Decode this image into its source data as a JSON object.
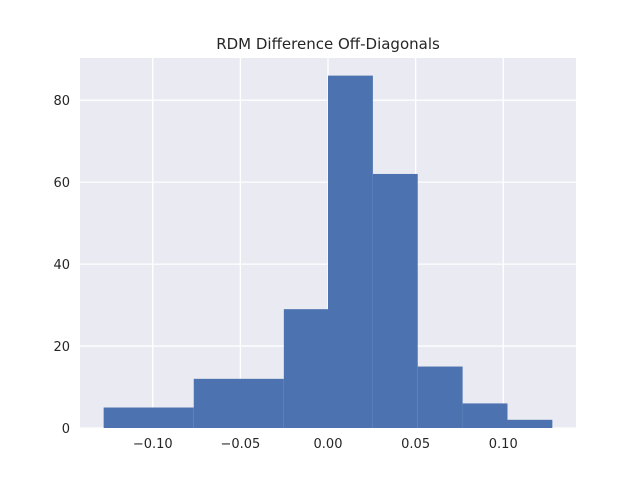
{
  "chart_data": {
    "type": "bar",
    "title": "RDM Difference Off-Diagonals",
    "xlabel": "",
    "ylabel": "",
    "bins": [
      {
        "x0": -0.128,
        "x1": -0.0766,
        "count": 5
      },
      {
        "x0": -0.0766,
        "x1": -0.0252,
        "count": 12
      },
      {
        "x0": -0.0252,
        "x1": 0.0,
        "count": 29
      },
      {
        "x0": 0.0,
        "x1": 0.0256,
        "count": 86
      },
      {
        "x0": 0.0256,
        "x1": 0.0512,
        "count": 62
      },
      {
        "x0": 0.0512,
        "x1": 0.0768,
        "count": 15
      },
      {
        "x0": 0.0768,
        "x1": 0.1024,
        "count": 6
      },
      {
        "x0": 0.1024,
        "x1": 0.128,
        "count": 2
      }
    ],
    "xlim": [
      -0.1415,
      0.1415
    ],
    "ylim": [
      0,
      90.3
    ],
    "xticks": [
      -0.1,
      -0.05,
      0.0,
      0.05,
      0.1
    ],
    "xtick_labels": [
      "−0.10",
      "−0.05",
      "0.00",
      "0.05",
      "0.10"
    ],
    "yticks": [
      0,
      20,
      40,
      60,
      80
    ],
    "ytick_labels": [
      "0",
      "20",
      "40",
      "60",
      "80"
    ],
    "grid": true,
    "colors": {
      "bar": "#4c72b0",
      "background": "#eaeaf2",
      "grid": "#ffffff"
    }
  }
}
